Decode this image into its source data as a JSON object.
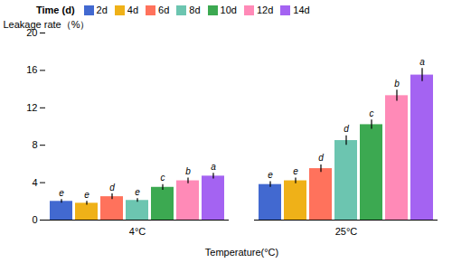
{
  "chart_data": {
    "type": "bar",
    "xlabel": "Temperature(°C)",
    "ylabel": "Leakage rate（%）",
    "categories": [
      "4°C",
      "25°C"
    ],
    "legend_title": "Time (d)",
    "series": [
      {
        "name": "2d",
        "values": [
          2.0,
          3.8
        ],
        "errors": [
          0.2,
          0.3
        ],
        "sig_labels": [
          "e",
          "e"
        ]
      },
      {
        "name": "4d",
        "values": [
          1.8,
          4.2
        ],
        "errors": [
          0.2,
          0.3
        ],
        "sig_labels": [
          "e",
          "e"
        ]
      },
      {
        "name": "6d",
        "values": [
          2.5,
          5.5
        ],
        "errors": [
          0.3,
          0.4
        ],
        "sig_labels": [
          "d",
          "d"
        ]
      },
      {
        "name": "8d",
        "values": [
          2.1,
          8.5
        ],
        "errors": [
          0.2,
          0.5
        ],
        "sig_labels": [
          "e",
          "d"
        ]
      },
      {
        "name": "10d",
        "values": [
          3.5,
          10.2
        ],
        "errors": [
          0.3,
          0.5
        ],
        "sig_labels": [
          "c",
          "c"
        ]
      },
      {
        "name": "12d",
        "values": [
          4.2,
          13.3
        ],
        "errors": [
          0.3,
          0.6
        ],
        "sig_labels": [
          "b",
          "b"
        ]
      },
      {
        "name": "14d",
        "values": [
          4.7,
          15.5
        ],
        "errors": [
          0.3,
          0.7
        ],
        "sig_labels": [
          "a",
          "a"
        ]
      }
    ],
    "ylim": [
      0,
      20
    ],
    "yticks": [
      0,
      4,
      8,
      12,
      16,
      20
    ],
    "grid": false,
    "legend": "top"
  }
}
